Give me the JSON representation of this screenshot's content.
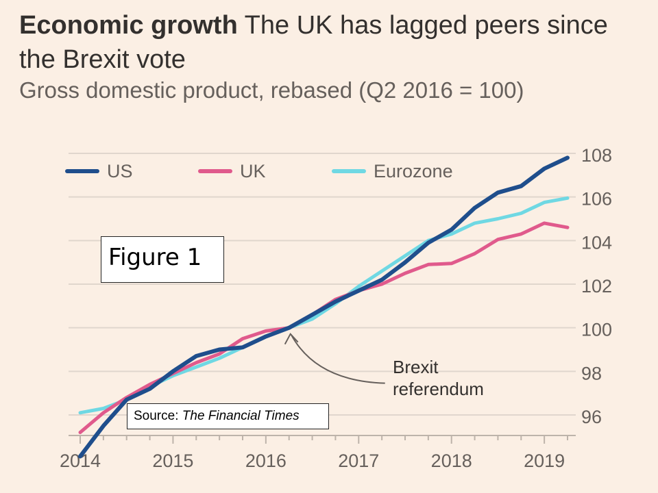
{
  "heading": {
    "bold": "Economic growth",
    "rest": "The UK has lagged peers since the Brexit vote"
  },
  "subtitle": "Gross domestic product, rebased (Q2 2016 = 100)",
  "figure_label": "Figure 1",
  "source": {
    "prefix": "Source:",
    "name": "The Financial Times"
  },
  "colors": {
    "US": "#1f4e8c",
    "UK": "#e05a8c",
    "Eurozone": "#6fd8e3",
    "grid": "#e0d6cd",
    "axis_text": "#66605c"
  },
  "chart_data": {
    "type": "line",
    "title": "Economic growth The UK has lagged peers since the Brexit vote",
    "subtitle": "Gross domestic product, rebased (Q2 2016 = 100)",
    "x": [
      2014.0,
      2014.25,
      2014.5,
      2014.75,
      2015.0,
      2015.25,
      2015.5,
      2015.75,
      2016.0,
      2016.25,
      2016.5,
      2016.75,
      2017.0,
      2017.25,
      2017.5,
      2017.75,
      2018.0,
      2018.25,
      2018.5,
      2018.75,
      2019.0,
      2019.25
    ],
    "x_ticks": [
      "2014",
      "2015",
      "2016",
      "2017",
      "2018",
      "2019"
    ],
    "x_tick_values": [
      2014,
      2015,
      2016,
      2017,
      2018,
      2019
    ],
    "xlim": [
      2014.0,
      2019.25
    ],
    "ylim": [
      95,
      108
    ],
    "y_ticks": [
      96,
      98,
      100,
      102,
      104,
      106,
      108
    ],
    "grid": true,
    "legend_position": "top-left",
    "series": [
      {
        "name": "US",
        "values": [
          94.1,
          95.5,
          96.7,
          97.2,
          98.0,
          98.7,
          99.0,
          99.1,
          99.6,
          100.0,
          100.6,
          101.2,
          101.7,
          102.2,
          103.0,
          103.9,
          104.5,
          105.5,
          106.2,
          106.5,
          107.3,
          107.8
        ]
      },
      {
        "name": "UK",
        "values": [
          95.2,
          96.1,
          96.8,
          97.4,
          97.9,
          98.4,
          98.8,
          99.5,
          99.85,
          100.0,
          100.6,
          101.3,
          101.7,
          102.0,
          102.5,
          102.9,
          102.95,
          103.4,
          104.05,
          104.3,
          104.8,
          104.6
        ]
      },
      {
        "name": "Eurozone",
        "values": [
          96.1,
          96.3,
          96.7,
          97.3,
          97.8,
          98.2,
          98.6,
          99.1,
          99.6,
          100.0,
          100.4,
          101.1,
          101.9,
          102.6,
          103.3,
          104.0,
          104.3,
          104.8,
          105.0,
          105.25,
          105.75,
          105.95
        ]
      }
    ],
    "annotations": [
      {
        "text_line1": "Brexit",
        "text_line2": "referendum",
        "x": 2016.25,
        "y": 100
      }
    ]
  }
}
